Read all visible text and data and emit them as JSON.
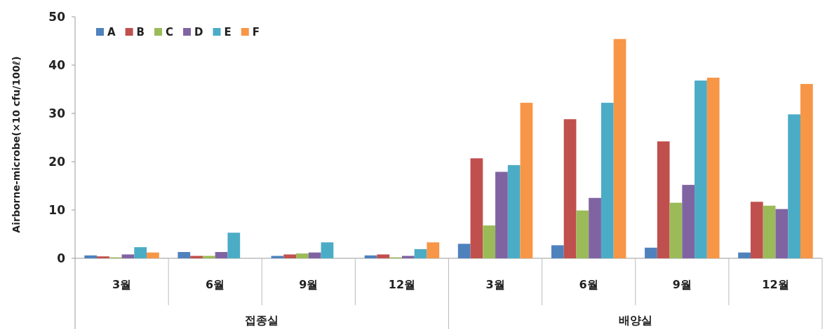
{
  "chart_data": {
    "type": "bar",
    "ylabel": "Airborne-microbe(×10 cfu/100ℓ)",
    "categories": [
      "3월",
      "6월",
      "9월",
      "12월",
      "3월",
      "6월",
      "9월",
      "12월"
    ],
    "annotations": [
      "접종실",
      "배양실"
    ],
    "series": [
      {
        "name": "A",
        "color": "#4f81bd",
        "values": [
          0.6,
          1.3,
          0.5,
          0.6,
          3.0,
          2.7,
          2.2,
          1.2
        ]
      },
      {
        "name": "B",
        "color": "#c0504d",
        "values": [
          0.4,
          0.5,
          0.8,
          0.8,
          20.7,
          28.8,
          24.2,
          11.7
        ]
      },
      {
        "name": "C",
        "color": "#9bbb59",
        "values": [
          0.2,
          0.5,
          1.0,
          0.2,
          6.8,
          9.9,
          11.5,
          10.9
        ]
      },
      {
        "name": "D",
        "color": "#8064a2",
        "values": [
          0.8,
          1.3,
          1.2,
          0.5,
          17.9,
          12.5,
          15.2,
          10.2
        ]
      },
      {
        "name": "E",
        "color": "#4bacc6",
        "values": [
          2.3,
          5.3,
          3.3,
          1.9,
          19.3,
          32.2,
          36.8,
          29.8
        ]
      },
      {
        "name": "F",
        "color": "#f79646",
        "values": [
          1.2,
          0,
          0,
          3.3,
          32.2,
          45.4,
          37.4,
          36.1
        ]
      }
    ],
    "ylim": [
      0,
      50
    ],
    "yticks": [
      0,
      10,
      20,
      30,
      40,
      50
    ],
    "legend": "top left",
    "grid": false
  }
}
